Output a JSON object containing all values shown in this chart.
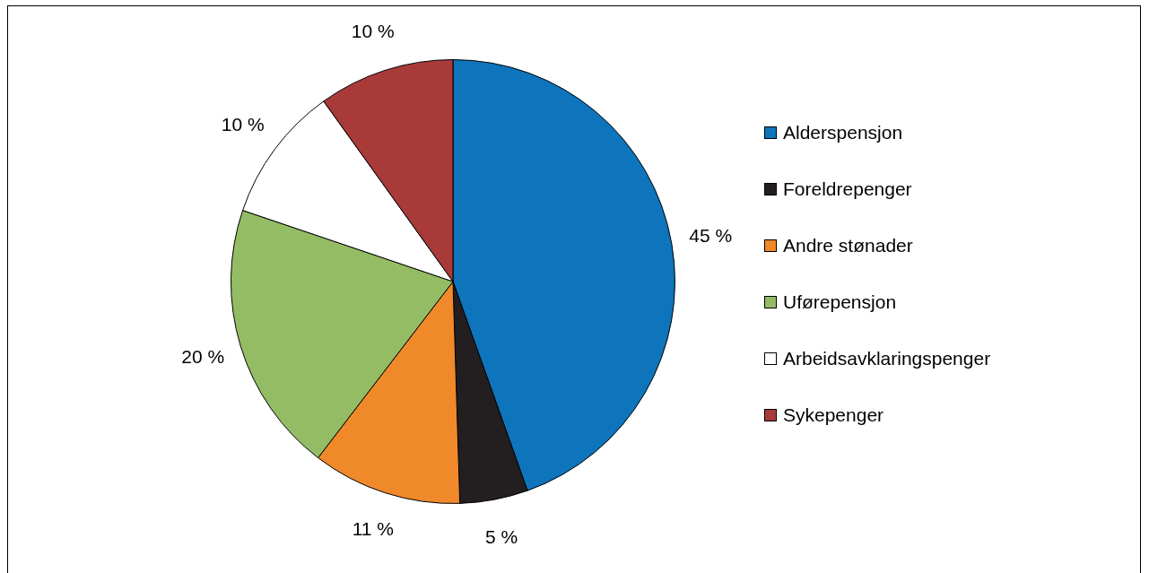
{
  "chart_data": {
    "type": "pie",
    "categories": [
      "Alderspensjon",
      "Foreldrepenger",
      "Andre stønader",
      "Uførepensjon",
      "Arbeidsavklaringspenger",
      "Sykepenger"
    ],
    "values": [
      45,
      5,
      11,
      20,
      10,
      10
    ],
    "value_labels": [
      "45 %",
      "5 %",
      "11 %",
      "20 %",
      "10 %",
      "10 %"
    ],
    "colors": [
      "#0e74bb",
      "#231f20",
      "#f0892a",
      "#94bc64",
      "#ffffff",
      "#a83a3a"
    ],
    "legend": "right"
  }
}
